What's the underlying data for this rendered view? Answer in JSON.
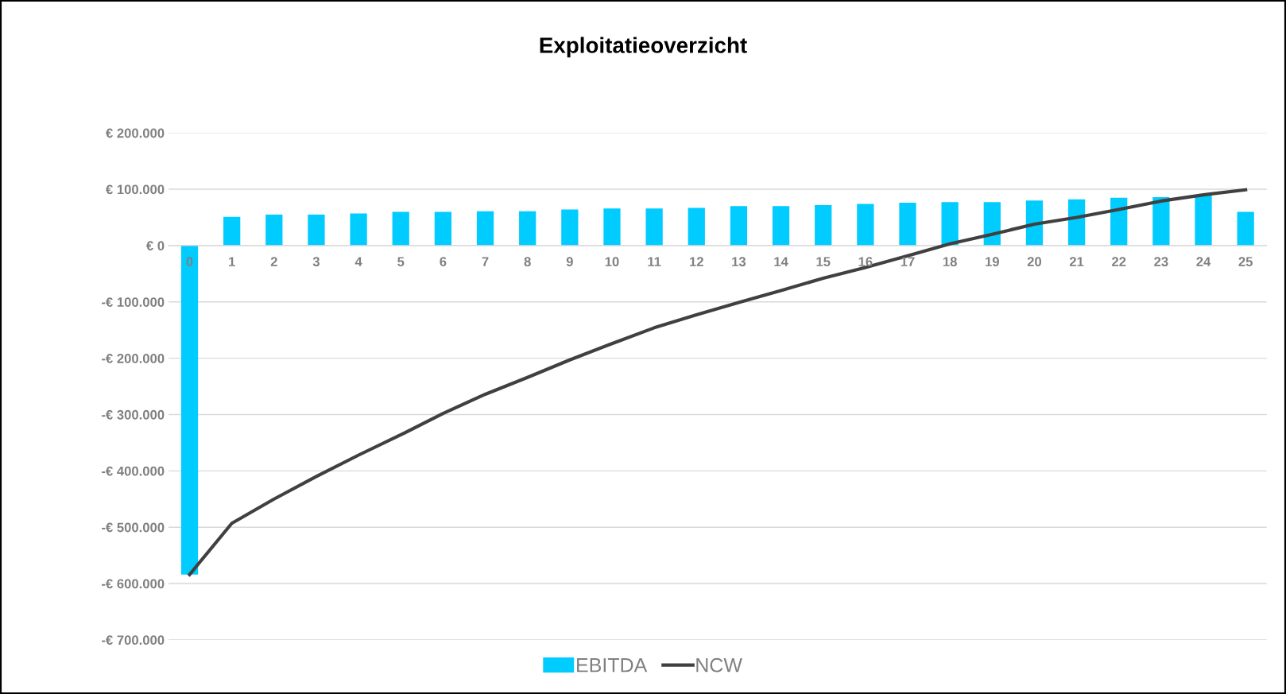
{
  "chart_data": {
    "type": "bar",
    "title": "Exploitatieoverzicht",
    "categories": [
      "0",
      "1",
      "2",
      "3",
      "4",
      "5",
      "6",
      "7",
      "8",
      "9",
      "10",
      "11",
      "12",
      "13",
      "14",
      "15",
      "16",
      "17",
      "18",
      "19",
      "20",
      "21",
      "22",
      "23",
      "24",
      "25"
    ],
    "series": [
      {
        "name": "EBITDA",
        "color": "#00ccff",
        "values": [
          -584000,
          51000,
          55000,
          55000,
          57000,
          60000,
          60000,
          61000,
          61000,
          64000,
          66000,
          66000,
          67000,
          70000,
          70000,
          72000,
          74000,
          76000,
          77000,
          77000,
          80000,
          82000,
          85000,
          86000,
          89000,
          60000
        ]
      },
      {
        "name": "NCW",
        "type": "line",
        "color": "#404040",
        "values": [
          -584000,
          -493000,
          -450000,
          -410000,
          -372000,
          -336000,
          -298000,
          -264000,
          -234000,
          -203000,
          -174000,
          -146000,
          -123000,
          -101000,
          -80000,
          -58000,
          -39000,
          -18000,
          3000,
          20000,
          38000,
          50000,
          64000,
          79000,
          90000,
          99000
        ]
      }
    ],
    "ylim": [
      -700000,
      200000
    ],
    "yticks": [
      {
        "value": -700000,
        "label": "-€ 700.000"
      },
      {
        "value": -600000,
        "label": "-€ 600.000"
      },
      {
        "value": -500000,
        "label": "-€ 500.000"
      },
      {
        "value": -400000,
        "label": "-€ 400.000"
      },
      {
        "value": -300000,
        "label": "-€ 300.000"
      },
      {
        "value": -200000,
        "label": "-€ 200.000"
      },
      {
        "value": -100000,
        "label": "-€ 100.000"
      },
      {
        "value": 0,
        "label": "€ 0"
      },
      {
        "value": 100000,
        "label": "€ 100.000"
      },
      {
        "value": 200000,
        "label": "€ 200.000"
      }
    ],
    "grid": "y",
    "legend": "bottom",
    "marker": "none",
    "line_style": "solid"
  }
}
